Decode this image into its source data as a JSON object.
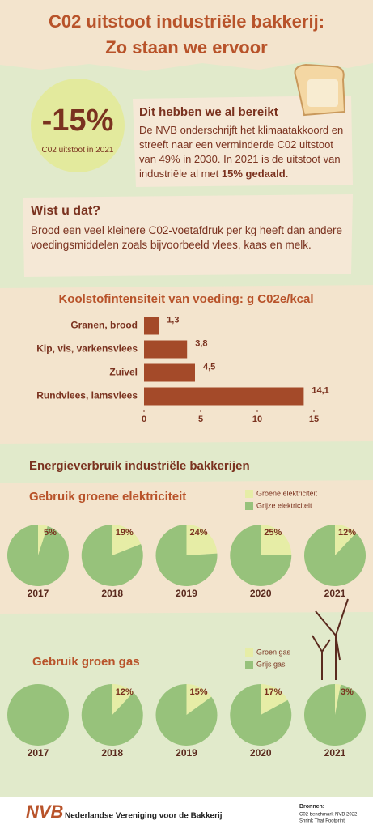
{
  "header": {
    "title_line1": "C02 uitstoot industriële bakkerij:",
    "title_line2": "Zo staan we ervoor"
  },
  "highlight": {
    "value": "-15%",
    "caption": "C02 uitstoot in 2021"
  },
  "achieved": {
    "heading": "Dit hebben we al bereikt",
    "text": "De NVB onderschrijft het klimaatakkoord en streeft naar een verminderde C02 uitstoot van 49% in 2030. In 2021 is de uitstoot van industriële al met",
    "text_bold": "15% gedaald."
  },
  "did_you_know": {
    "heading": "Wist u dat?",
    "text": "Brood een veel kleinere C02-voetafdruk per kg heeft dan andere voedingsmiddelen zoals bijvoorbeeld vlees, kaas en melk."
  },
  "section_title": "Energieverbruik industriële bakkerijen",
  "chart_data": [
    {
      "type": "bar",
      "orientation": "horizontal",
      "title": "Koolstofintensiteit van voeding: g C02e/kcal",
      "categories": [
        "Granen, brood",
        "Kip, vis, varkensvlees",
        "Zuivel",
        "Rundvlees, lamsvlees"
      ],
      "values": [
        1.3,
        3.8,
        4.5,
        14.1
      ],
      "value_labels": [
        "1,3",
        "3,8",
        "4,5",
        "14,1"
      ],
      "color": "#a44a29",
      "xlim": [
        0,
        15
      ],
      "xticks": [
        0,
        5,
        10,
        15
      ]
    },
    {
      "type": "pie",
      "title": "Gebruik groene elektriciteit",
      "categories": [
        "2017",
        "2018",
        "2019",
        "2020",
        "2021"
      ],
      "series": [
        {
          "name": "Groene elektriciteit",
          "color": "#e6eda6",
          "values": [
            5,
            19,
            24,
            25,
            12
          ],
          "value_labels": [
            "5%",
            "19%",
            "24%",
            "25%",
            "12%"
          ]
        },
        {
          "name": "Grijze elektriciteit",
          "color": "#97c27b",
          "values": [
            95,
            81,
            76,
            75,
            88
          ]
        }
      ]
    },
    {
      "type": "pie",
      "title": "Gebruik groen gas",
      "categories": [
        "2017",
        "2018",
        "2019",
        "2020",
        "2021"
      ],
      "series": [
        {
          "name": "Groen gas",
          "color": "#e6eda6",
          "values": [
            0,
            12,
            15,
            17,
            3
          ],
          "value_labels": [
            null,
            "12%",
            "15%",
            "17%",
            "3%"
          ]
        },
        {
          "name": "Grijs gas",
          "color": "#97c27b",
          "values": [
            100,
            88,
            85,
            83,
            97
          ]
        }
      ]
    }
  ],
  "footer": {
    "logo": "NVB",
    "organization": "Nederlandse Vereniging voor de Bakkerij",
    "sources_heading": "Bronnen:",
    "sources": [
      "C02 benchmark NVB 2022",
      "Shrink That Footprint"
    ]
  }
}
